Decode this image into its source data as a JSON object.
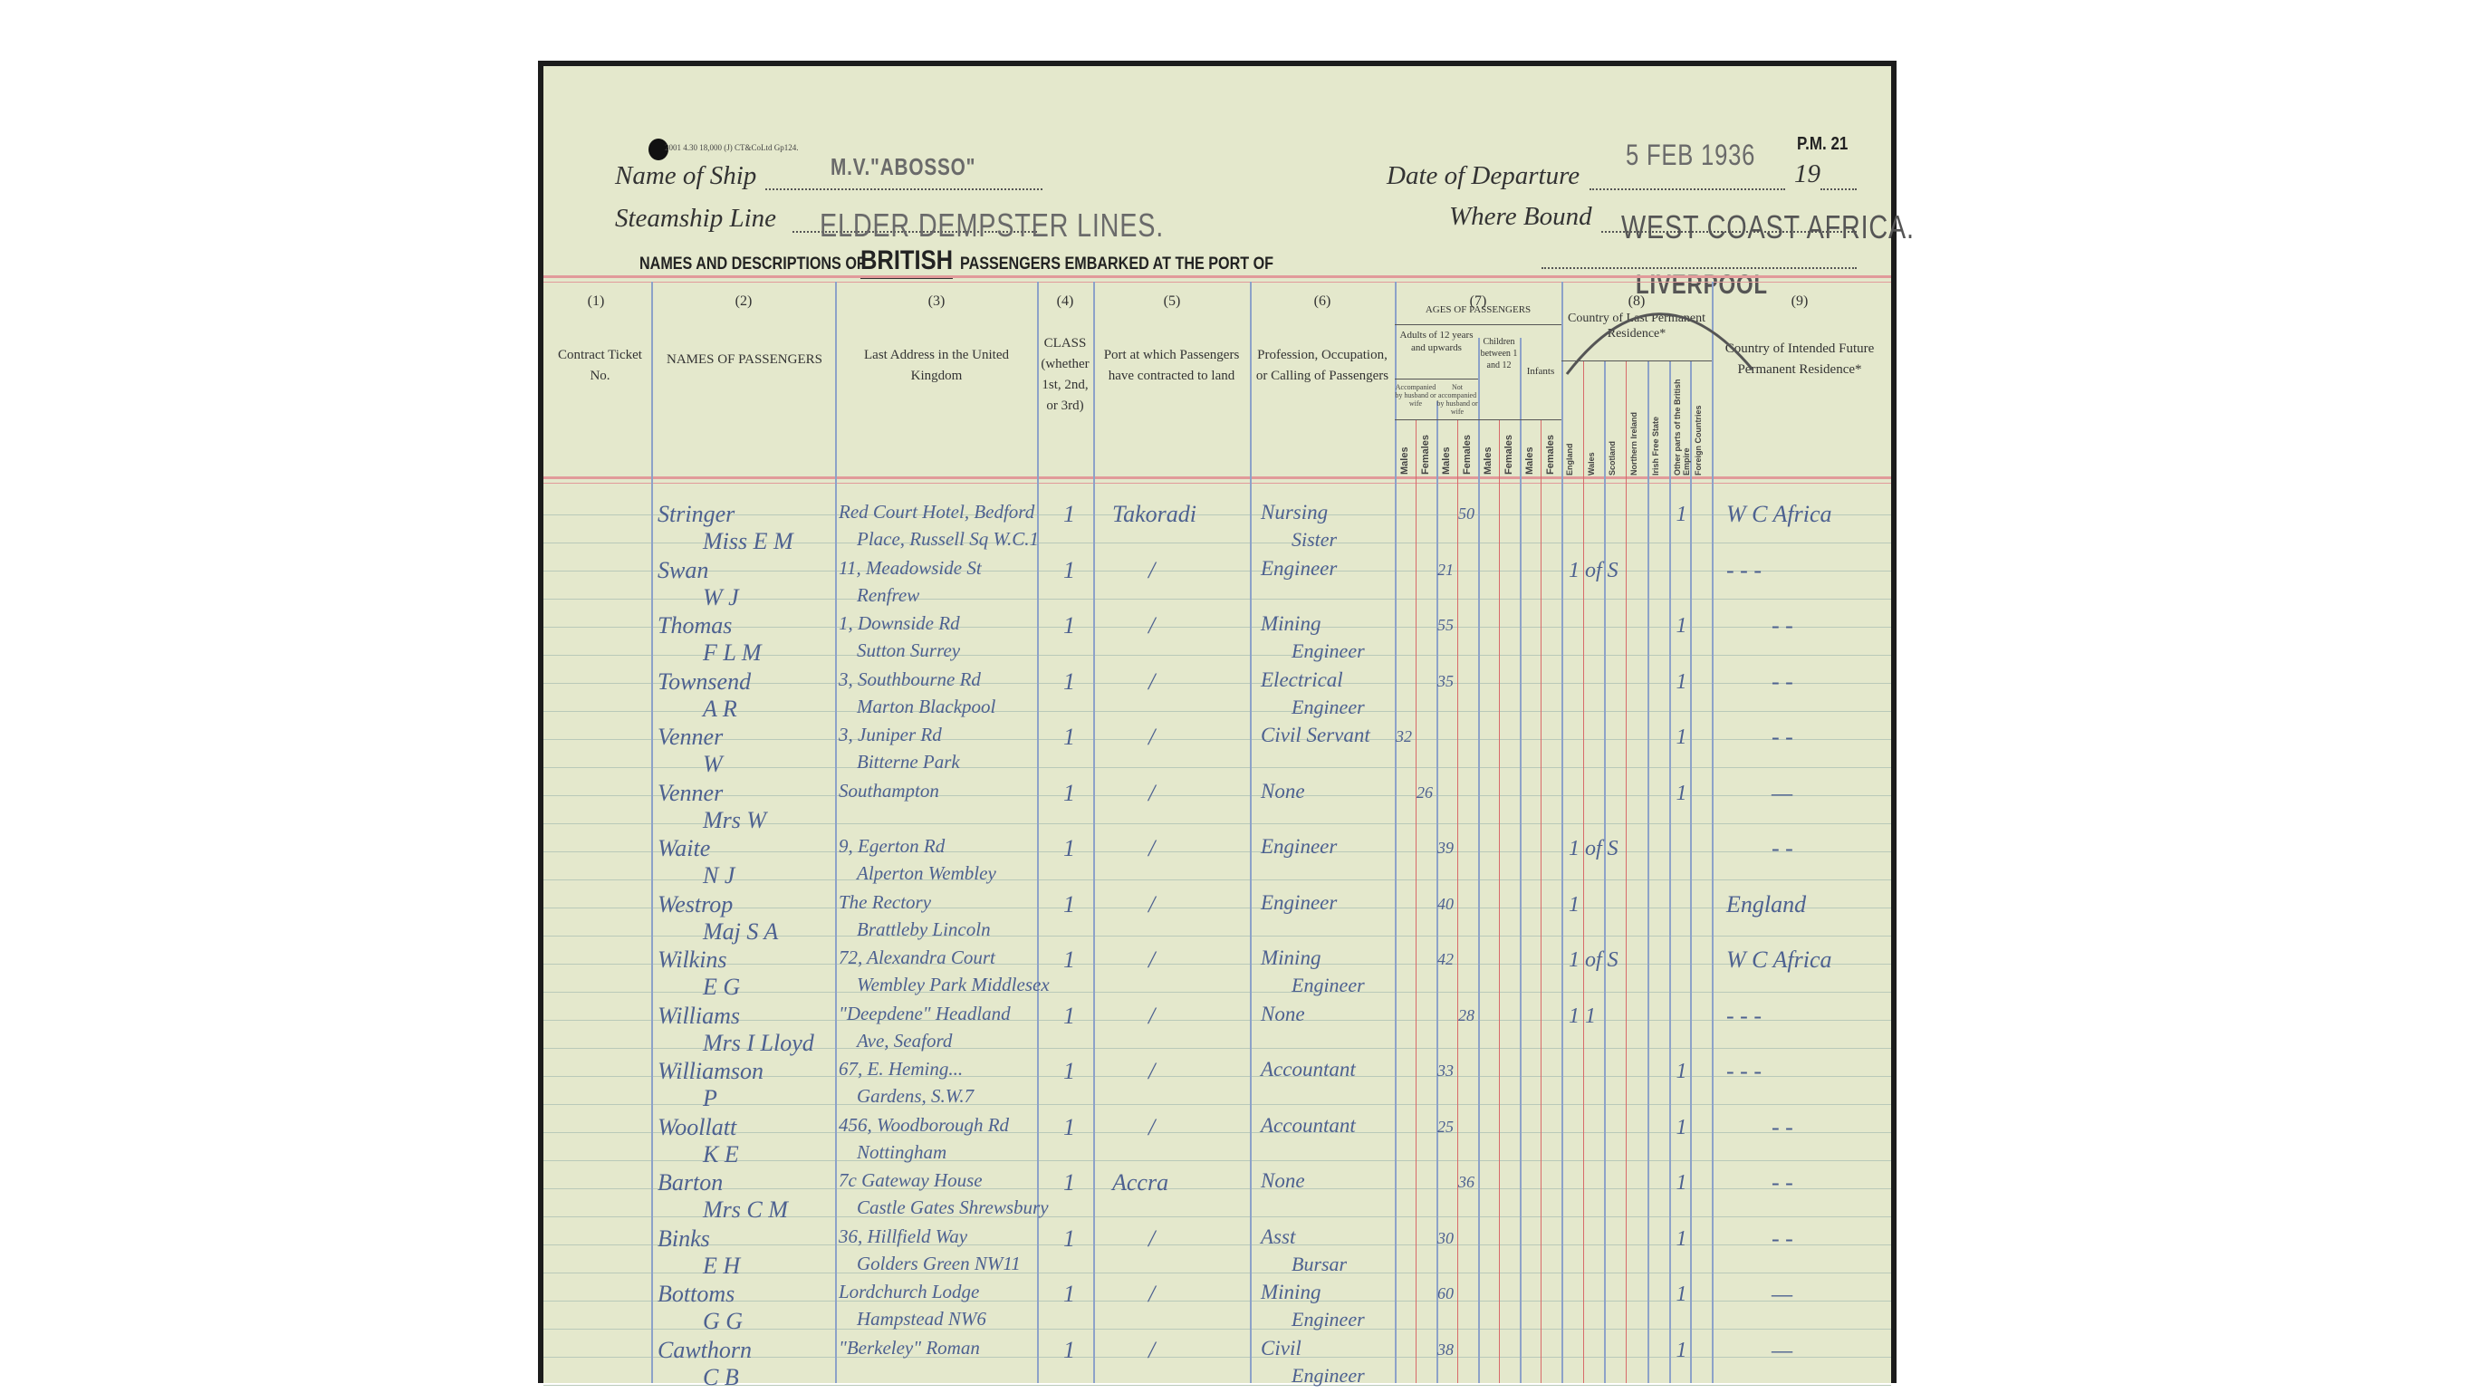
{
  "form": {
    "print_code": "2001 4.30 18,000 (J) CT&CoLtd Gp124.",
    "form_number": "P.M. 21",
    "name_of_ship_label": "Name of Ship",
    "name_of_ship": "M.V.\"ABOSSO\"",
    "date_of_departure_label": "Date of Departure",
    "date_of_departure": "5 FEB 1936",
    "year_prefix": "19",
    "steamship_line_label": "Steamship Line",
    "steamship_line": "ELDER DEMPSTER LINES.",
    "where_bound_label": "Where Bound",
    "where_bound": "WEST COAST AFRICA.",
    "title_pre": "NAMES AND DESCRIPTIONS OF",
    "title_emph": "BRITISH",
    "title_post": "PASSENGERS EMBARKED AT THE PORT OF",
    "port": "LIVERPOOL"
  },
  "columns": {
    "numbers": [
      "(1)",
      "(2)",
      "(3)",
      "(4)",
      "(5)",
      "(6)",
      "(7)",
      "(8)",
      "(9)"
    ],
    "c1": "Contract Ticket No.",
    "c2": "NAMES OF PASSENGERS",
    "c3": "Last Address in the United Kingdom",
    "c4": "CLASS (whether 1st, 2nd, or 3rd)",
    "c5": "Port at which Passengers have contracted to land",
    "c6": "Profession, Occupation, or Calling of Passengers",
    "c7": "AGES OF PASSENGERS",
    "c7_adults": "Adults of 12 years and upwards",
    "c7_acc": "Accompanied by husband or wife",
    "c7_notacc": "Not accompanied by husband or wife",
    "c7_children": "Children between 1 and 12",
    "c7_infants": "Infants",
    "c7_sex": [
      "Males",
      "Females",
      "Males",
      "Females",
      "Males",
      "Females",
      "Males",
      "Females"
    ],
    "c8": "Country of Last Permanent Residence*",
    "c8_countries": [
      "England",
      "Wales",
      "Scotland",
      "Northern Ireland",
      "Irish Free State",
      "Other parts of the British Empire",
      "Foreign Countries"
    ],
    "c9": "Country of Intended Future Permanent Residence*"
  },
  "passengers": [
    {
      "surname": "Stringer",
      "given": "Miss E M",
      "address1": "Red Court Hotel, Bedford",
      "address2": "Place, Russell Sq W.C.1",
      "class": "1",
      "port": "Takoradi",
      "profession1": "Nursing",
      "profession2": "Sister",
      "age": "50",
      "age_column": "Not accompanied Females",
      "country_mark": "1",
      "country_column": "Other parts of the British Empire",
      "intended": "W C Africa"
    },
    {
      "surname": "Swan",
      "given": "W J",
      "address1": "11, Meadowside St",
      "address2": "Renfrew",
      "class": "1",
      "port": "/",
      "profession1": "Engineer",
      "profession2": "",
      "age": "21",
      "age_column": "Not accompanied Males",
      "country_mark": "1 of S",
      "country_column": "England",
      "intended": "- - -"
    },
    {
      "surname": "Thomas",
      "given": "F L M",
      "address1": "1, Downside Rd",
      "address2": "Sutton Surrey",
      "class": "1",
      "port": "/",
      "profession1": "Mining",
      "profession2": "Engineer",
      "age": "55",
      "age_column": "Not accompanied Males",
      "country_mark": "1",
      "country_column": "Other parts of the British Empire",
      "intended": "- -"
    },
    {
      "surname": "Townsend",
      "given": "A R",
      "address1": "3, Southbourne Rd",
      "address2": "Marton Blackpool",
      "class": "1",
      "port": "/",
      "profession1": "Electrical",
      "profession2": "Engineer",
      "age": "35",
      "age_column": "Not accompanied Males",
      "country_mark": "1",
      "country_column": "Other parts of the British Empire",
      "intended": "- -"
    },
    {
      "surname": "Venner",
      "given": "W",
      "address1": "3, Juniper Rd",
      "address2": "Bitterne Park",
      "class": "1",
      "port": "/",
      "profession1": "Civil Servant",
      "profession2": "",
      "age": "32",
      "age_column": "Accompanied Males",
      "country_mark": "1",
      "country_column": "Other parts of the British Empire",
      "intended": "- -"
    },
    {
      "surname": "Venner",
      "given": "Mrs W",
      "address1": "Southampton",
      "address2": "",
      "class": "1",
      "port": "/",
      "profession1": "None",
      "profession2": "",
      "age": "26",
      "age_column": "Accompanied Females",
      "country_mark": "1",
      "country_column": "Other parts of the British Empire",
      "intended": "—"
    },
    {
      "surname": "Waite",
      "given": "N J",
      "address1": "9, Egerton Rd",
      "address2": "Alperton Wembley",
      "class": "1",
      "port": "/",
      "profession1": "Engineer",
      "profession2": "",
      "age": "39",
      "age_column": "Not accompanied Males",
      "country_mark": "1 of S",
      "country_column": "England",
      "intended": "- -"
    },
    {
      "surname": "Westrop",
      "given": "Maj S A",
      "address1": "The Rectory",
      "address2": "Brattleby Lincoln",
      "class": "1",
      "port": "/",
      "profession1": "Engineer",
      "profession2": "",
      "age": "40",
      "age_column": "Not accompanied Males",
      "country_mark": "1",
      "country_column": "England",
      "intended": "England"
    },
    {
      "surname": "Wilkins",
      "given": "E G",
      "address1": "72, Alexandra Court",
      "address2": "Wembley Park Middlesex",
      "class": "1",
      "port": "/",
      "profession1": "Mining",
      "profession2": "Engineer",
      "age": "42",
      "age_column": "Not accompanied Males",
      "country_mark": "1 of S",
      "country_column": "England",
      "intended": "W C Africa"
    },
    {
      "surname": "Williams",
      "given": "Mrs I Lloyd",
      "address1": "\"Deepdene\" Headland",
      "address2": "Ave, Seaford",
      "class": "1",
      "port": "/",
      "profession1": "None",
      "profession2": "",
      "age": "28",
      "age_column": "Not accompanied Females",
      "country_mark": "1 1",
      "country_column": "England",
      "intended": "- - -"
    },
    {
      "surname": "Williamson",
      "given": "P",
      "address1": "67, E. Heming...",
      "address2": "Gardens, S.W.7",
      "class": "1",
      "port": "/",
      "profession1": "Accountant",
      "profession2": "",
      "age": "33",
      "age_column": "Not accompanied Males",
      "country_mark": "1",
      "country_column": "Other parts of the British Empire",
      "intended": "- - -"
    },
    {
      "surname": "Woollatt",
      "given": "K E",
      "address1": "456, Woodborough Rd",
      "address2": "Nottingham",
      "class": "1",
      "port": "/",
      "profession1": "Accountant",
      "profession2": "",
      "age": "25",
      "age_column": "Not accompanied Males",
      "country_mark": "1",
      "country_column": "Other parts of the British Empire",
      "intended": "- -"
    },
    {
      "surname": "Barton",
      "given": "Mrs C M",
      "address1": "7c Gateway House",
      "address2": "Castle Gates Shrewsbury",
      "class": "1",
      "port": "Accra",
      "profession1": "None",
      "profession2": "",
      "age": "36",
      "age_column": "Not accompanied Females",
      "country_mark": "1",
      "country_column": "Other parts of the British Empire",
      "intended": "- -"
    },
    {
      "surname": "Binks",
      "given": "E H",
      "address1": "36, Hillfield Way",
      "address2": "Golders Green NW11",
      "class": "1",
      "port": "/",
      "profession1": "Asst",
      "profession2": "Bursar",
      "age": "30",
      "age_column": "Not accompanied Males",
      "country_mark": "1",
      "country_column": "Other parts of the British Empire",
      "intended": "- -"
    },
    {
      "surname": "Bottoms",
      "given": "G G",
      "address1": "Lordchurch Lodge",
      "address2": "Hampstead NW6",
      "class": "1",
      "port": "/",
      "profession1": "Mining",
      "profession2": "Engineer",
      "age": "60",
      "age_column": "Not accompanied Males",
      "country_mark": "1",
      "country_column": "Other parts of the British Empire",
      "intended": "—"
    },
    {
      "surname": "Cawthorn",
      "given": "C B",
      "address1": "\"Berkeley\" Roman",
      "address2": "",
      "class": "1",
      "port": "/",
      "profession1": "Civil",
      "profession2": "Engineer",
      "age": "38",
      "age_column": "Not accompanied Males",
      "country_mark": "1",
      "country_column": "Other parts of the British Empire",
      "intended": "—"
    }
  ],
  "colors": {
    "paper": "#e4e8cc",
    "ink": "#4d6190",
    "red_rule": "#d86a6a",
    "blue_rule": "#8da2c8"
  }
}
